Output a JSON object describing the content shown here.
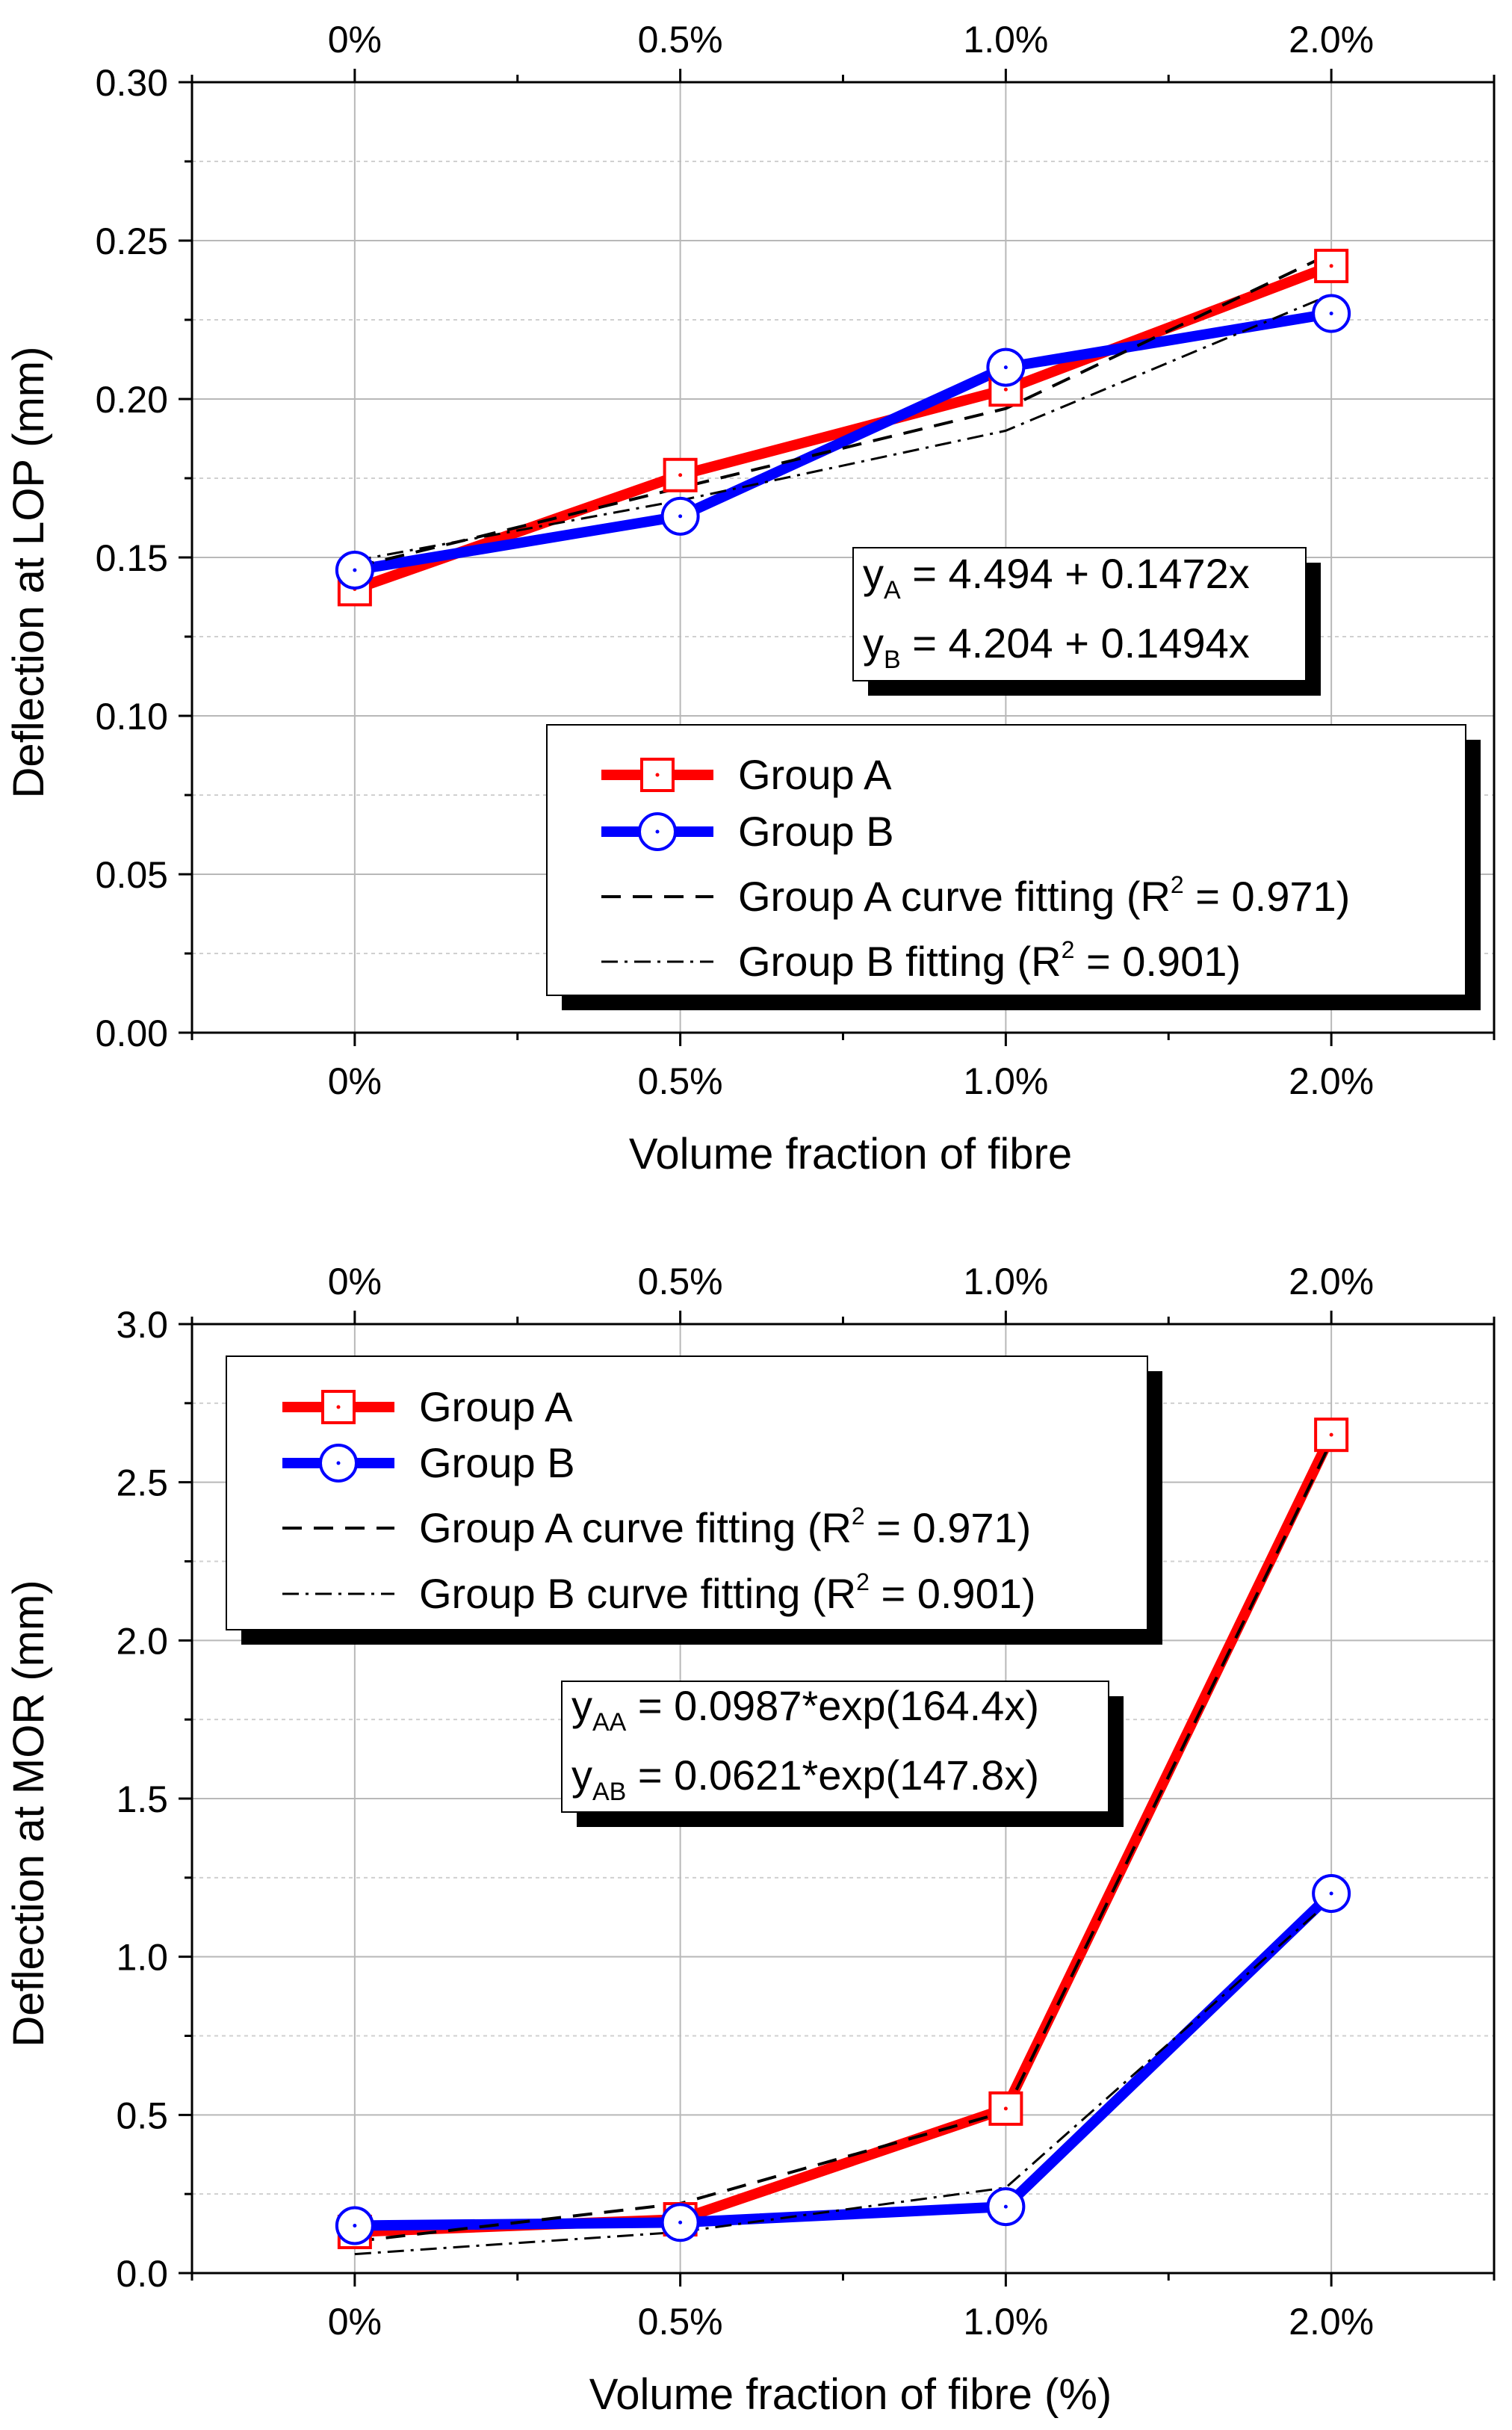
{
  "chart_data": [
    {
      "type": "line",
      "id": "top",
      "title": "",
      "xlabel": "Volume fraction of fibre",
      "ylabel": "Deflection at LOP (mm)",
      "categories": [
        "0%",
        "0.5%",
        "1.0%",
        "2.0%"
      ],
      "ylim": [
        0,
        0.3
      ],
      "yticks": [
        "0.00",
        "0.05",
        "0.10",
        "0.15",
        "0.20",
        "0.25",
        "0.30"
      ],
      "grid": true,
      "series": [
        {
          "name": "Group A",
          "values": [
            0.14,
            0.176,
            0.203,
            0.242
          ],
          "color": "#ff0000",
          "marker": "square",
          "style": "solid"
        },
        {
          "name": "Group B",
          "values": [
            0.146,
            0.163,
            0.21,
            0.227
          ],
          "color": "#0000ff",
          "marker": "circle",
          "style": "solid"
        },
        {
          "name": "Group A curve fitting",
          "values": [
            0.147,
            0.172,
            0.197,
            0.246
          ],
          "color": "#000000",
          "marker": "none",
          "style": "dash"
        },
        {
          "name": "Group B fitting",
          "values": [
            0.149,
            0.168,
            0.19,
            0.233
          ],
          "color": "#000000",
          "marker": "none",
          "style": "dashdot"
        }
      ],
      "legend": {
        "position": "bottom-right",
        "entries": [
          {
            "pre": "Group A",
            "sup": "",
            "post": ""
          },
          {
            "pre": "Group B",
            "sup": "",
            "post": ""
          },
          {
            "pre": "Group A curve fitting (R",
            "sup": "2",
            "post": " = 0.971)"
          },
          {
            "pre": "Group B fitting (R",
            "sup": "2",
            "post": " = 0.901)"
          }
        ]
      },
      "equations": [
        {
          "var": "y",
          "sub": "A",
          "rest": " = 4.494 + 0.1472x"
        },
        {
          "var": "y",
          "sub": "B",
          "rest": " = 4.204 + 0.1494x"
        }
      ]
    },
    {
      "type": "line",
      "id": "bottom",
      "title": "",
      "xlabel": "Volume fraction of fibre (%)",
      "ylabel": "Deflection at MOR (mm)",
      "categories": [
        "0%",
        "0.5%",
        "1.0%",
        "2.0%"
      ],
      "ylim": [
        0,
        3.0
      ],
      "yticks": [
        "0.0",
        "0.5",
        "1.0",
        "1.5",
        "2.0",
        "2.5",
        "3.0"
      ],
      "grid": true,
      "series": [
        {
          "name": "Group A",
          "values": [
            0.13,
            0.17,
            0.52,
            2.65
          ],
          "color": "#ff0000",
          "marker": "square",
          "style": "solid"
        },
        {
          "name": "Group B",
          "values": [
            0.15,
            0.16,
            0.21,
            1.2
          ],
          "color": "#0000ff",
          "marker": "circle",
          "style": "solid"
        },
        {
          "name": "Group A curve fitting",
          "values": [
            0.1,
            0.22,
            0.51,
            2.63
          ],
          "color": "#000000",
          "marker": "none",
          "style": "dash"
        },
        {
          "name": "Group B curve fitting",
          "values": [
            0.06,
            0.13,
            0.27,
            1.18
          ],
          "color": "#000000",
          "marker": "none",
          "style": "dashdot"
        }
      ],
      "legend": {
        "position": "top-left",
        "entries": [
          {
            "pre": "Group A",
            "sup": "",
            "post": ""
          },
          {
            "pre": "Group B",
            "sup": "",
            "post": ""
          },
          {
            "pre": "Group A curve fitting (R",
            "sup": "2",
            "post": " = 0.971)"
          },
          {
            "pre": "Group B curve fitting (R",
            "sup": "2",
            "post": " = 0.901)"
          }
        ]
      },
      "equations": [
        {
          "var": "y",
          "sub": "AA",
          "rest": " = 0.0987*exp(164.4x)"
        },
        {
          "var": "y",
          "sub": "AB",
          "rest": " = 0.0621*exp(147.8x)"
        }
      ]
    }
  ]
}
